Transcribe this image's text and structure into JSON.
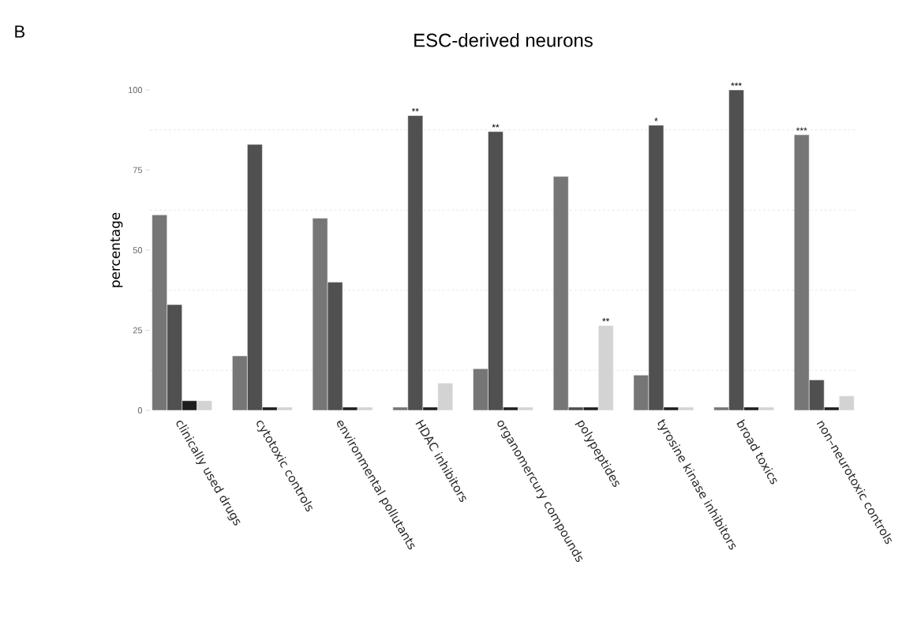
{
  "chart_data": {
    "type": "bar",
    "title": "ESC-derived neurons",
    "ylabel": "percentage",
    "annotations": [
      "B"
    ],
    "categories": [
      "clinically used drugs",
      "cytotoxic controls",
      "environmental pollutants",
      "HDAC inhibitors",
      "organomercury compounds",
      "polypeptides",
      "tyrosine kinase inhibitors",
      "broad toxics",
      "non–neurotoxic controls"
    ],
    "series": [
      {
        "color": "#767676",
        "values": [
          61,
          17,
          60,
          1,
          13,
          73,
          11,
          1,
          86
        ],
        "value_labels": [
          null,
          null,
          null,
          null,
          null,
          null,
          null,
          null,
          "***"
        ]
      },
      {
        "color": "#505050",
        "values": [
          33,
          83,
          40,
          92,
          87,
          1,
          89,
          100,
          9.5
        ],
        "value_labels": [
          null,
          null,
          null,
          "**",
          "**",
          null,
          "*",
          "***",
          null
        ]
      },
      {
        "color": "#1e1e1e",
        "values": [
          3,
          1,
          1,
          1,
          1,
          1,
          1,
          1,
          1
        ]
      },
      {
        "color": "#d3d3d3",
        "values": [
          3,
          1,
          1,
          8.5,
          1,
          26.5,
          1,
          1,
          4.5
        ],
        "value_labels": [
          null,
          null,
          null,
          null,
          null,
          "**",
          null,
          null,
          null
        ]
      }
    ],
    "ylim": [
      0,
      100
    ],
    "yticks": [
      0,
      25,
      50,
      75,
      100
    ],
    "grid": "y"
  }
}
